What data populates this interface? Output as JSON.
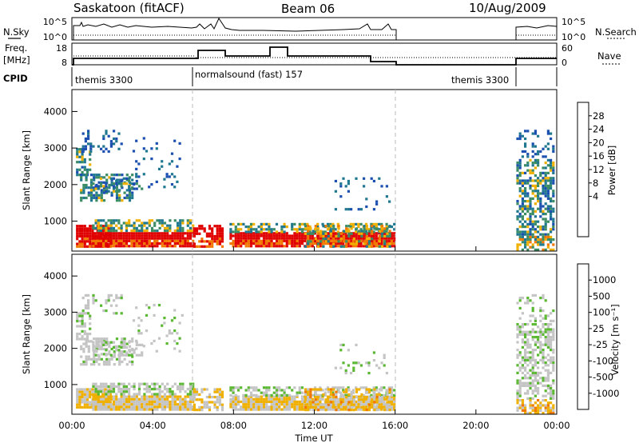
{
  "header": {
    "station": "Saskatoon (fitACF)",
    "beam": "Beam 06",
    "date": "10/Aug/2009"
  },
  "left_labels": {
    "nsky": "N.Sky",
    "freq": "Freq.",
    "freq_unit": "[MHz]",
    "cpid": "CPID"
  },
  "right_labels": {
    "nsearch": "N.Search",
    "nave": "Nave"
  },
  "panels": {
    "noise": {
      "left_ticks": [
        "10^5",
        "10^0"
      ],
      "right_ticks": [
        "10^5",
        "10^0"
      ]
    },
    "freq": {
      "left_ticks": [
        "18",
        "8"
      ],
      "right_ticks": [
        "60",
        "0"
      ]
    }
  },
  "cpid_segments": [
    {
      "label": "themis 3300",
      "start_h": 0,
      "end_h": 6
    },
    {
      "label": "normalsound (fast) 157",
      "start_h": 6,
      "end_h": 16
    },
    {
      "label": "themis 3300",
      "start_h": 16,
      "end_h": 24
    }
  ],
  "axes": {
    "ylabel": "Slant Range [km]",
    "xlabel": "Time UT",
    "x_ticks": [
      "00:00",
      "04:00",
      "08:00",
      "12:00",
      "16:00",
      "20:00",
      "00:00"
    ],
    "y_ticks": [
      "1000",
      "2000",
      "3000",
      "4000"
    ]
  },
  "colorbars": {
    "power": {
      "title": "Power [dB]",
      "labels": [
        "28",
        "24",
        "20",
        "16",
        "12",
        "8",
        "4"
      ],
      "colors": [
        "#e00000",
        "#f04000",
        "#f07800",
        "#f0b000",
        "#c0c040",
        "#70b060",
        "#3c8c64",
        "#207890",
        "#1c50b0",
        "#0000e0"
      ]
    },
    "velocity": {
      "title": "Velocity [m s⁻¹]",
      "labels": [
        "1000",
        "500",
        "100",
        "25",
        "-25",
        "-100",
        "-500",
        "-1000"
      ],
      "colors": [
        "#1c3fa0",
        "#1c70b0",
        "#2c8c64",
        "#5ab832",
        "#c4c4c4",
        "#f0b000",
        "#f07800",
        "#f04000",
        "#e00000"
      ]
    }
  },
  "chart_data": {
    "type": "heatmap",
    "x_range_hours": [
      0,
      24
    ],
    "y_range_km": [
      180,
      4600
    ],
    "power_colors": [
      "#e00000",
      "#f07800",
      "#f0b000",
      "#3c8c64",
      "#207890",
      "#1c50b0"
    ],
    "velocity_colors": [
      "#c4c4c4",
      "#f0b000",
      "#5ab832",
      "#f07800"
    ]
  }
}
